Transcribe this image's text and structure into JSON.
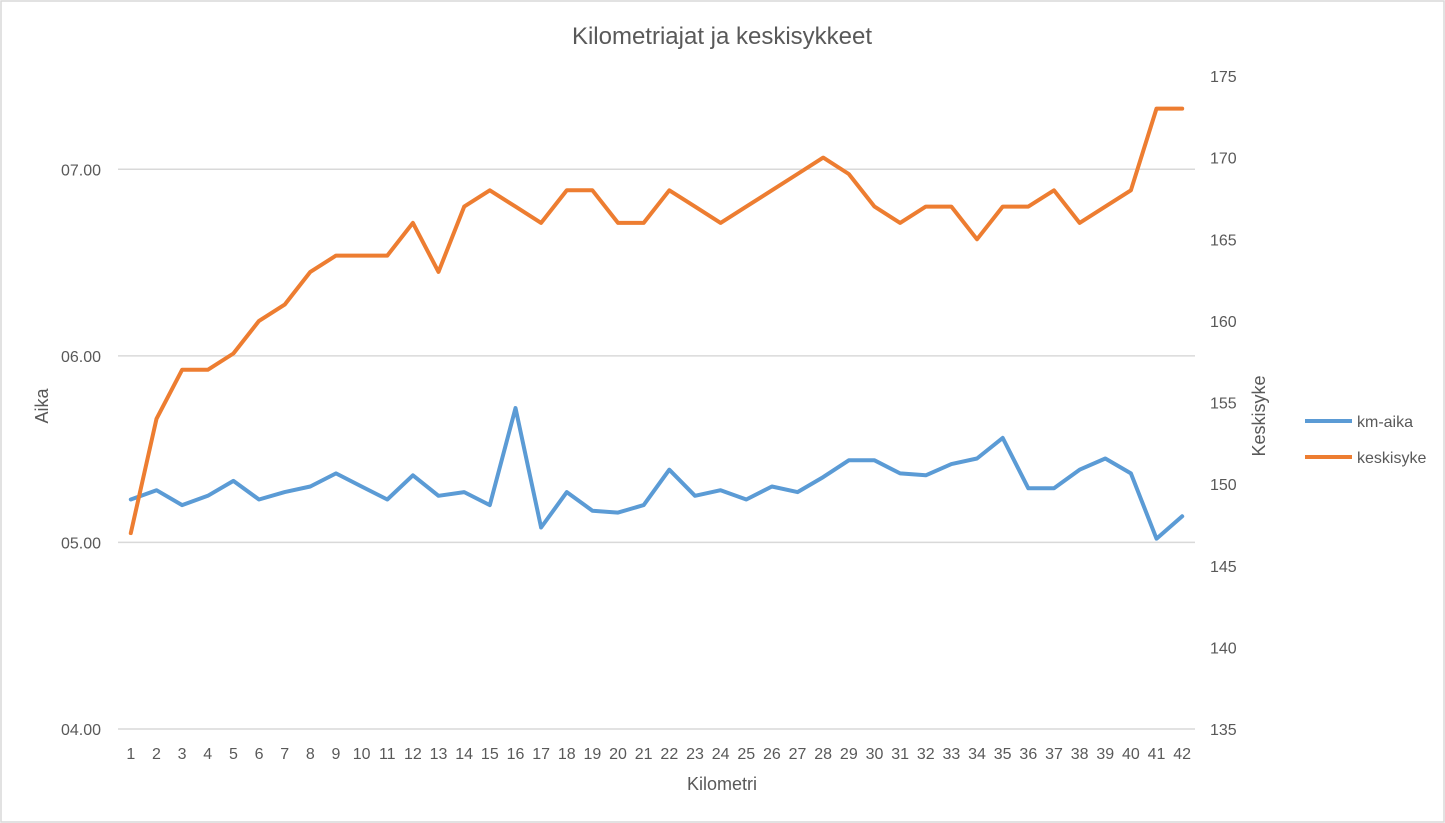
{
  "chart_data": {
    "type": "line",
    "title": "Kilometriajat ja keskisykkeet",
    "xlabel": "Kilometri",
    "ylabel_left": "Aika",
    "ylabel_right": "Keskisyke",
    "x": [
      1,
      2,
      3,
      4,
      5,
      6,
      7,
      8,
      9,
      10,
      11,
      12,
      13,
      14,
      15,
      16,
      17,
      18,
      19,
      20,
      21,
      22,
      23,
      24,
      25,
      26,
      27,
      28,
      29,
      30,
      31,
      32,
      33,
      34,
      35,
      36,
      37,
      38,
      39,
      40,
      41,
      42
    ],
    "y_left_ticks": [
      "04.00",
      "05.00",
      "06.00",
      "07.00"
    ],
    "y_left_tick_values": [
      4.0,
      5.0,
      6.0,
      7.0
    ],
    "y_left_range": [
      4.0,
      7.5
    ],
    "y_right_ticks": [
      135,
      140,
      145,
      150,
      155,
      160,
      165,
      170,
      175
    ],
    "y_right_range": [
      135,
      175
    ],
    "grid": true,
    "legend_position": "right",
    "series": [
      {
        "name": "km-aika",
        "axis": "left",
        "color": "#5b9bd5",
        "values": [
          5.23,
          5.28,
          5.2,
          5.25,
          5.33,
          5.23,
          5.27,
          5.3,
          5.37,
          5.3,
          5.23,
          5.36,
          5.25,
          5.27,
          5.2,
          5.72,
          5.08,
          5.27,
          5.17,
          5.16,
          5.2,
          5.39,
          5.25,
          5.28,
          5.23,
          5.3,
          5.27,
          5.35,
          5.44,
          5.44,
          5.37,
          5.36,
          5.42,
          5.45,
          5.56,
          5.29,
          5.29,
          5.39,
          5.45,
          5.37,
          5.02,
          5.14
        ]
      },
      {
        "name": "keskisyke",
        "axis": "right",
        "color": "#ed7d31",
        "values": [
          147,
          154,
          157,
          157,
          158,
          160,
          161,
          163,
          164,
          164,
          164,
          166,
          163,
          167,
          168,
          167,
          166,
          168,
          168,
          166,
          166,
          168,
          167,
          166,
          167,
          168,
          169,
          170,
          169,
          167,
          166,
          167,
          167,
          165,
          167,
          167,
          168,
          166,
          167,
          168,
          173,
          173
        ]
      }
    ]
  }
}
